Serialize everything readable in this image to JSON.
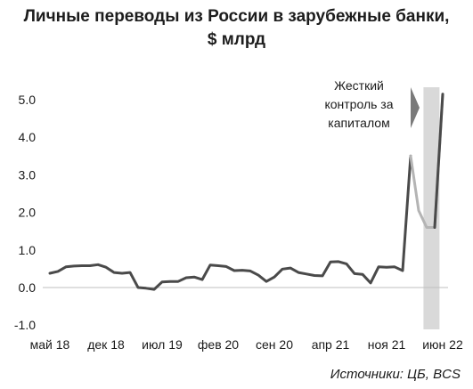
{
  "chart_data": {
    "type": "line",
    "title_lines": [
      "Личные переводы из России в зарубежные банки,",
      "$ млрд"
    ],
    "ylim": [
      -1.0,
      5.3
    ],
    "yticks": [
      "-1.0",
      "0.0",
      "1.0",
      "2.0",
      "3.0",
      "4.0",
      "5.0"
    ],
    "ytick_values": [
      -1.0,
      0.0,
      1.0,
      2.0,
      3.0,
      4.0,
      5.0
    ],
    "xtick_labels": [
      "май 18",
      "дек 18",
      "июл 19",
      "фев 20",
      "сен 20",
      "апр 21",
      "ноя 21",
      "июн 22"
    ],
    "xtick_indices": [
      0,
      7,
      14,
      21,
      28,
      35,
      42,
      49
    ],
    "series": [
      {
        "color": "#4a4a4a",
        "values": [
          0.38,
          0.43,
          0.55,
          0.57,
          0.58,
          0.58,
          0.61,
          0.54,
          0.4,
          0.38,
          0.4,
          0.0,
          -0.02,
          -0.05,
          0.15,
          0.16,
          0.16,
          0.26,
          0.28,
          0.21,
          0.6,
          0.58,
          0.56,
          0.45,
          0.46,
          0.44,
          0.33,
          0.16,
          0.28,
          0.49,
          0.52,
          0.4,
          0.36,
          0.32,
          0.31,
          0.68,
          0.69,
          0.63,
          0.37,
          0.35,
          0.12,
          0.55,
          0.54,
          0.55,
          0.45,
          3.5
        ]
      },
      {
        "color": "#b4b4b4",
        "start_index": 45,
        "values": [
          3.5,
          2.05,
          1.6,
          1.6,
          5.15
        ]
      },
      {
        "color": "#4a4a4a",
        "start_index": 48,
        "values": [
          1.6,
          5.15
        ]
      }
    ],
    "shaded_band": {
      "from_index": 46.6,
      "to_index": 48.6,
      "color": "#d9d9d9"
    },
    "annotation": {
      "lines": [
        "Жесткий",
        "контроль за",
        "капиталом"
      ],
      "arrow_color": "#7a7a7a"
    },
    "source": "Источники: ЦБ, BCS"
  }
}
